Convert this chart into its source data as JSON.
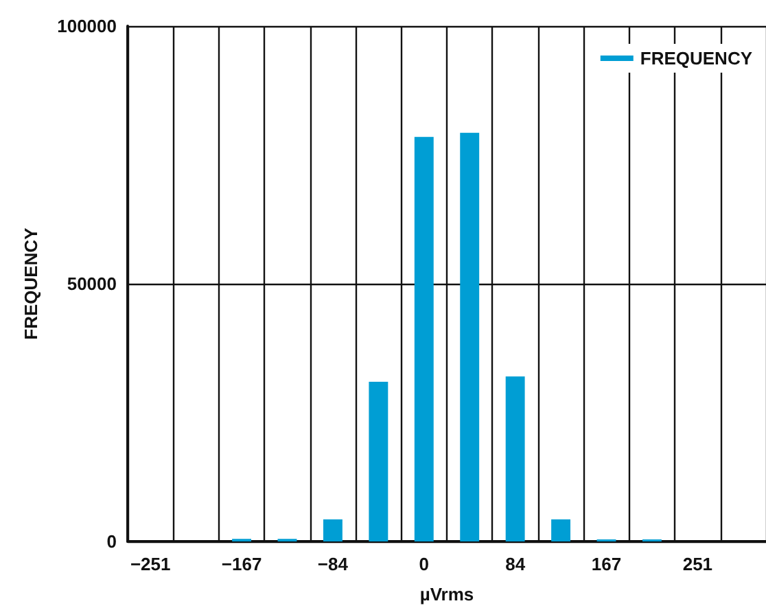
{
  "chart_data": {
    "type": "bar",
    "xlabel": "µVrms",
    "ylabel": "FREQUENCY",
    "categories": [
      "−251",
      null,
      "−167",
      null,
      "−84",
      null,
      "0",
      null,
      "84",
      null,
      "167",
      null,
      "251",
      null
    ],
    "series": [
      {
        "name": "FREQUENCY",
        "color": "#009ed4",
        "values": [
          0,
          0,
          500,
          500,
          4300,
          31000,
          78500,
          79300,
          32000,
          4300,
          400,
          400,
          0,
          0
        ]
      }
    ],
    "ylim": [
      0,
      100000
    ],
    "yticks": [
      0,
      50000,
      100000
    ],
    "grid": true,
    "legend": "top right"
  }
}
